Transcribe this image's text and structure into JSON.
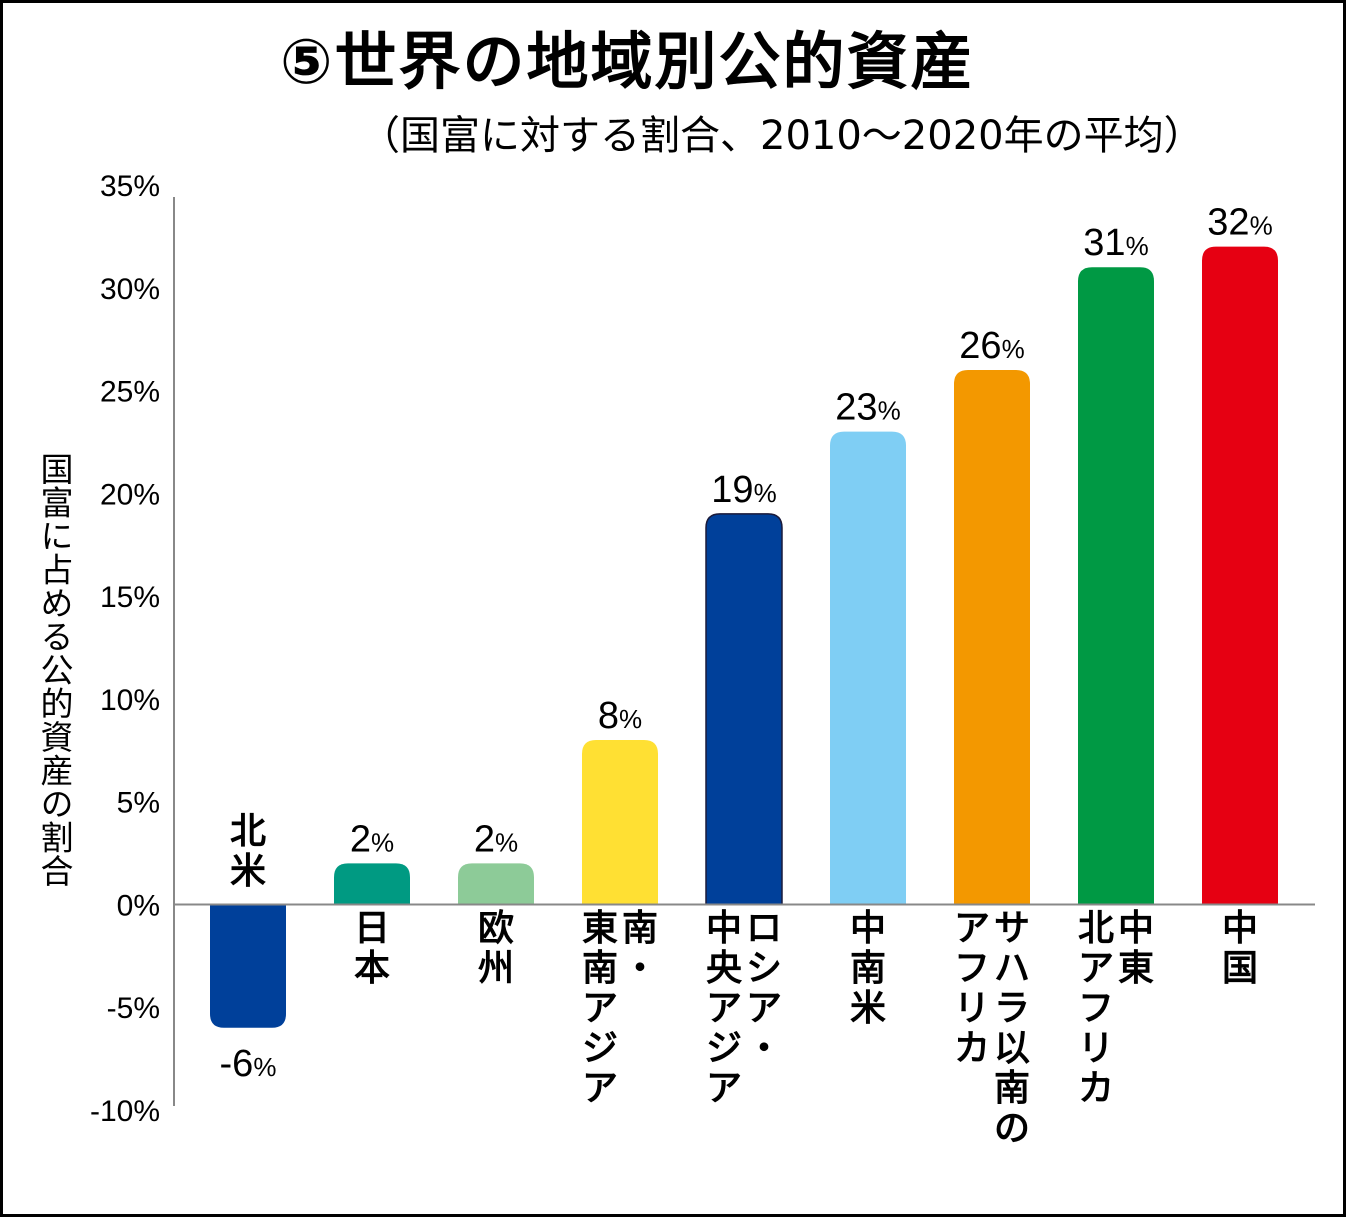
{
  "chart_data": {
    "type": "bar",
    "title": "⑤世界の地域別公的資産",
    "subtitle": "（国富に対する割合、2010～2020年の平均）",
    "xlabel": "",
    "ylabel": "国富に占める公的資産の割合",
    "ylim": [
      -10,
      35
    ],
    "yticks": [
      35,
      30,
      25,
      20,
      15,
      10,
      5,
      0,
      -5,
      -10
    ],
    "ytick_labels": [
      "35%",
      "30%",
      "25%",
      "20%",
      "15%",
      "10%",
      "5%",
      "0%",
      "-5%",
      "-10%"
    ],
    "grid": false,
    "categories": [
      [
        "北米"
      ],
      [
        "日本"
      ],
      [
        "欧州"
      ],
      [
        "東南アジア",
        "南・"
      ],
      [
        "中央アジア",
        "ロシア・"
      ],
      [
        "中南米"
      ],
      [
        "アフリカ",
        "サハラ以南の"
      ],
      [
        "北アフリカ",
        "中東"
      ],
      [
        "中国"
      ]
    ],
    "values": [
      -6,
      2,
      2,
      8,
      19,
      23,
      26,
      31,
      32
    ],
    "value_numbers": [
      "-6",
      "2",
      "2",
      "8",
      "19",
      "23",
      "26",
      "31",
      "32"
    ],
    "value_unit": "%",
    "colors": [
      "#00409A",
      "#009A82",
      "#8DCB98",
      "#FFE033",
      "#00409A",
      "#7FCEF4",
      "#F39800",
      "#009944",
      "#E60012"
    ]
  }
}
